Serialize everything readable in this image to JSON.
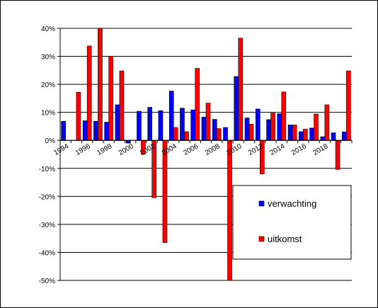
{
  "chart_data": {
    "type": "bar",
    "title": "",
    "xlabel": "",
    "ylabel": "",
    "ylim": [
      -0.5,
      0.4
    ],
    "y_ticks": [
      0.4,
      0.3,
      0.2,
      0.1,
      0,
      -0.1,
      -0.2,
      -0.3,
      -0.4,
      -0.5
    ],
    "y_tick_labels": [
      "40%",
      "30%",
      "20%",
      "10%",
      "0%",
      "-10%",
      "-20%",
      "-30%",
      "-40%",
      "-50%"
    ],
    "grid": "horizontal",
    "legend_position": "bottom-right, inside plot",
    "categories": [
      1994,
      1995,
      1996,
      1997,
      1998,
      1999,
      2000,
      2001,
      2002,
      2003,
      2004,
      2005,
      2006,
      2007,
      2008,
      2009,
      2010,
      2011,
      2012,
      2013,
      2014,
      2015,
      2016,
      2017,
      2018,
      2019,
      2020
    ],
    "x_tick_labels": [
      "1994",
      "",
      "1996",
      "",
      "1998",
      "",
      "2000",
      "",
      "2002",
      "",
      "2004",
      "",
      "2006",
      "",
      "2008",
      "",
      "2010",
      "",
      "2012",
      "",
      "2014",
      "",
      "2016",
      "",
      "2018",
      "",
      ""
    ],
    "series": [
      {
        "name": "verwachting",
        "color": "#0000ff",
        "values": [
          0.068,
          null,
          0.07,
          0.068,
          0.065,
          0.127,
          -0.01,
          0.104,
          0.118,
          0.106,
          0.176,
          0.115,
          0.109,
          0.083,
          0.075,
          0.046,
          0.228,
          0.08,
          0.112,
          0.074,
          0.095,
          0.055,
          0.031,
          0.044,
          0.013,
          0.027,
          0.03
        ]
      },
      {
        "name": "uitkomst",
        "color": "#ff0000",
        "values": [
          null,
          0.172,
          0.337,
          0.4,
          0.3,
          0.248,
          null,
          -0.05,
          -0.205,
          -0.365,
          0.046,
          0.031,
          0.257,
          0.133,
          0.042,
          -0.5,
          0.365,
          0.058,
          -0.12,
          0.097,
          0.173,
          0.055,
          0.04,
          0.094,
          0.127,
          -0.104,
          0.248
        ]
      }
    ]
  }
}
